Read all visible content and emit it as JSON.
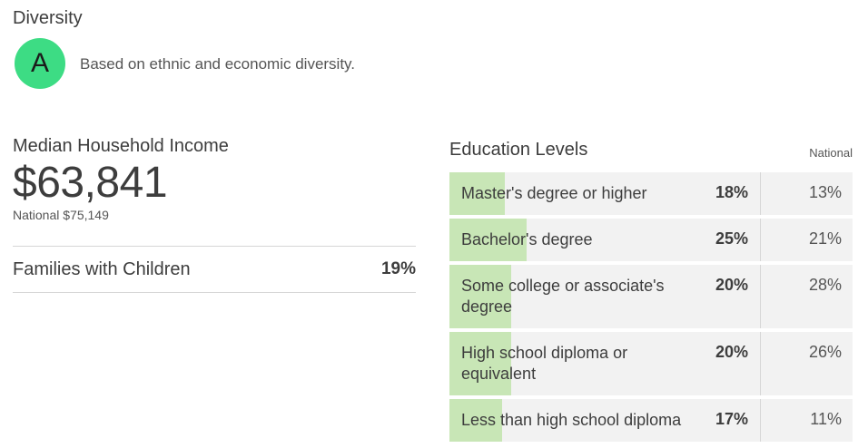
{
  "diversity": {
    "title": "Diversity",
    "grade": "A",
    "description": "Based on ethnic and economic diversity.",
    "grade_color": "#3ddc84"
  },
  "income": {
    "label": "Median Household Income",
    "value": "$63,841",
    "national": "National $75,149"
  },
  "families": {
    "label": "Families with Children",
    "value": "19%"
  },
  "education": {
    "title": "Education Levels",
    "national_label": "National",
    "fill_color": "#c8e6b6",
    "rows": [
      {
        "label": "Master's degree or higher",
        "value": "18%",
        "national": "13%",
        "fraction": 0.18
      },
      {
        "label": "Bachelor's degree",
        "value": "25%",
        "national": "21%",
        "fraction": 0.25
      },
      {
        "label": "Some college or associate's degree",
        "value": "20%",
        "national": "28%",
        "fraction": 0.2
      },
      {
        "label": "High school diploma or equivalent",
        "value": "20%",
        "national": "26%",
        "fraction": 0.2
      },
      {
        "label": "Less than high school diploma",
        "value": "17%",
        "national": "11%",
        "fraction": 0.17
      }
    ]
  }
}
